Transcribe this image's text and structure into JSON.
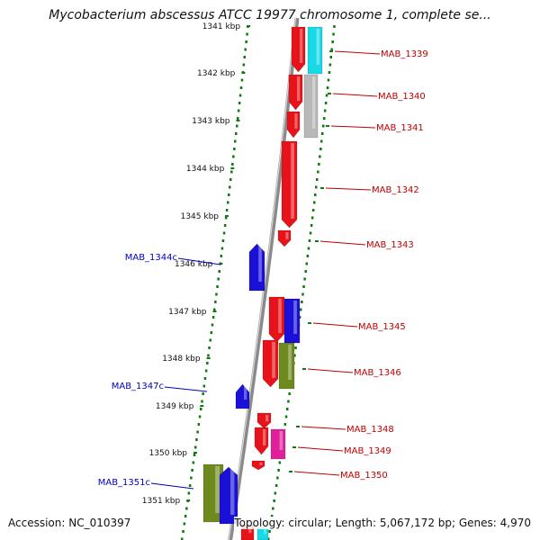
{
  "title": "Mycobacterium abscessus ATCC 19977 chromosome 1, complete se...",
  "footer": {
    "accession": "Accession: NC_010397",
    "summary": "Topology: circular; Length: 5,067,172 bp; Genes: 4,970"
  },
  "colors": {
    "forward_gene": "#e8131a",
    "reverse_gene": "#1a10d8",
    "forward_label": "#c00000",
    "reverse_label": "#0000c0",
    "backbone": "#8a8a8a",
    "ticks": "#0f7a0f",
    "cyan": "#19d9e6",
    "gray": "#b8b8b8",
    "olive": "#6e8a1e",
    "magenta": "#e0209a"
  },
  "ruler": {
    "unit": "kbp",
    "ticks": [
      "1341 kbp",
      "1342 kbp",
      "1343 kbp",
      "1344 kbp",
      "1345 kbp",
      "1346 kbp",
      "1347 kbp",
      "1348 kbp",
      "1349 kbp",
      "1350 kbp",
      "1351 kbp"
    ]
  },
  "labels_forward": [
    "MAB_1339",
    "MAB_1340",
    "MAB_1341",
    "MAB_1342",
    "MAB_1343",
    "MAB_1345",
    "MAB_1346",
    "MAB_1348",
    "MAB_1349",
    "MAB_1350"
  ],
  "labels_reverse": [
    "MAB_1344c",
    "MAB_1347c",
    "MAB_1351c"
  ],
  "icons": [
    "circular-genome-map"
  ]
}
